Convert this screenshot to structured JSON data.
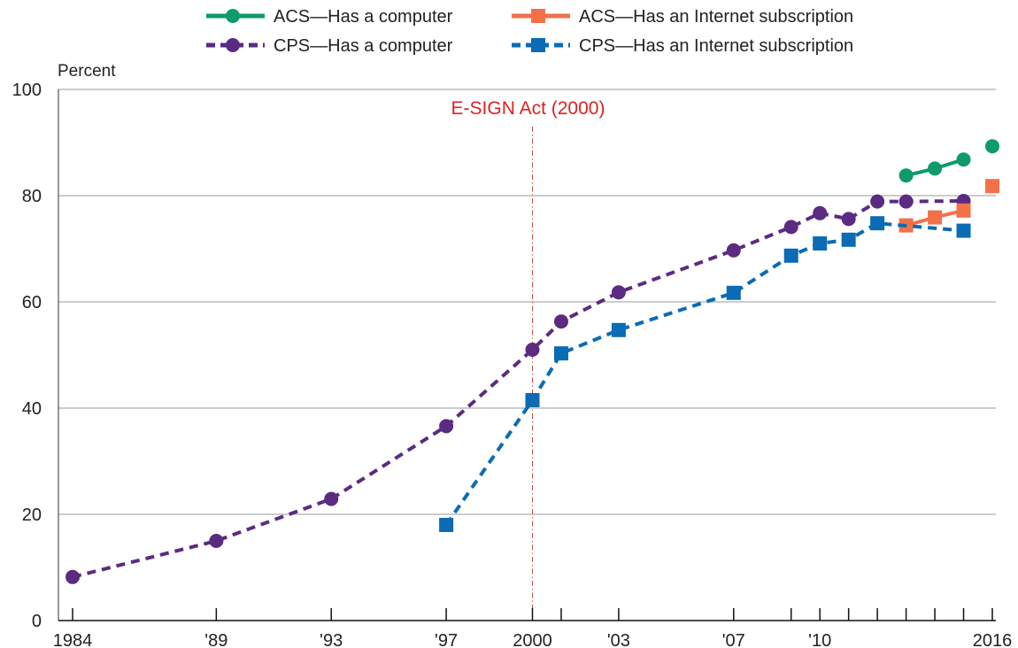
{
  "chart_data": {
    "type": "line",
    "title": "",
    "xlabel": "",
    "ylabel": "Percent",
    "xlim": [
      1984,
      2016
    ],
    "ylim": [
      0,
      100
    ],
    "grid": true,
    "legend_position": "top",
    "y_ticks": [
      {
        "value": 0,
        "label": "0"
      },
      {
        "value": 20,
        "label": "20"
      },
      {
        "value": 40,
        "label": "40"
      },
      {
        "value": 60,
        "label": "60"
      },
      {
        "value": 80,
        "label": "80"
      },
      {
        "value": 100,
        "label": "100"
      }
    ],
    "x_ticks": [
      {
        "value": 1984,
        "label": "1984"
      },
      {
        "value": 1989,
        "label": "'89"
      },
      {
        "value": 1993,
        "label": "'93"
      },
      {
        "value": 1997,
        "label": "'97"
      },
      {
        "value": 2000,
        "label": "2000"
      },
      {
        "value": 2003,
        "label": "'03"
      },
      {
        "value": 2007,
        "label": "'07"
      },
      {
        "value": 2010,
        "label": "'10"
      },
      {
        "value": 2016,
        "label": "2016"
      }
    ],
    "x_minor_ticks": [
      2001,
      2009,
      2011,
      2012,
      2013,
      2014,
      2015
    ],
    "series": [
      {
        "name": "ACS—Has a computer",
        "color": "#0f9a6b",
        "marker": "circle",
        "dashed": false,
        "x": [
          2013,
          2014,
          2015,
          2016
        ],
        "y": [
          83.8,
          85.1,
          86.8,
          89.3
        ],
        "segments": [
          [
            2013,
            2015
          ]
        ]
      },
      {
        "name": "CPS—Has a computer",
        "color": "#5b2b82",
        "marker": "circle",
        "dashed": true,
        "x": [
          1984,
          1989,
          1993,
          1997,
          2000,
          2001,
          2003,
          2007,
          2009,
          2010,
          2011,
          2012,
          2013,
          2015
        ],
        "y": [
          8.2,
          15.0,
          22.9,
          36.6,
          51.0,
          56.3,
          61.8,
          69.7,
          74.1,
          76.7,
          75.6,
          78.9,
          78.9,
          79.0
        ],
        "segments": [
          [
            1984,
            2015
          ]
        ]
      },
      {
        "name": "ACS—Has an Internet subscription",
        "color": "#f27149",
        "marker": "square",
        "dashed": false,
        "x": [
          2013,
          2014,
          2015,
          2016
        ],
        "y": [
          74.4,
          75.9,
          77.2,
          81.8
        ],
        "segments": [
          [
            2013,
            2015
          ]
        ]
      },
      {
        "name": "CPS—Has an Internet subscription",
        "color": "#0b6bb4",
        "marker": "square",
        "dashed": true,
        "x": [
          1997,
          2000,
          2001,
          2003,
          2007,
          2009,
          2010,
          2011,
          2012,
          2015
        ],
        "y": [
          18.0,
          41.5,
          50.3,
          54.7,
          61.7,
          68.7,
          71.0,
          71.7,
          74.8,
          73.4
        ],
        "segments": [
          [
            1997,
            2015
          ]
        ]
      }
    ],
    "annotations": [
      {
        "text": "E-SIGN Act (2000)",
        "x": 2000,
        "color": "#e02020",
        "line_color": "#c0504d"
      }
    ]
  },
  "legend": {
    "order": [
      0,
      2,
      1,
      3
    ]
  }
}
